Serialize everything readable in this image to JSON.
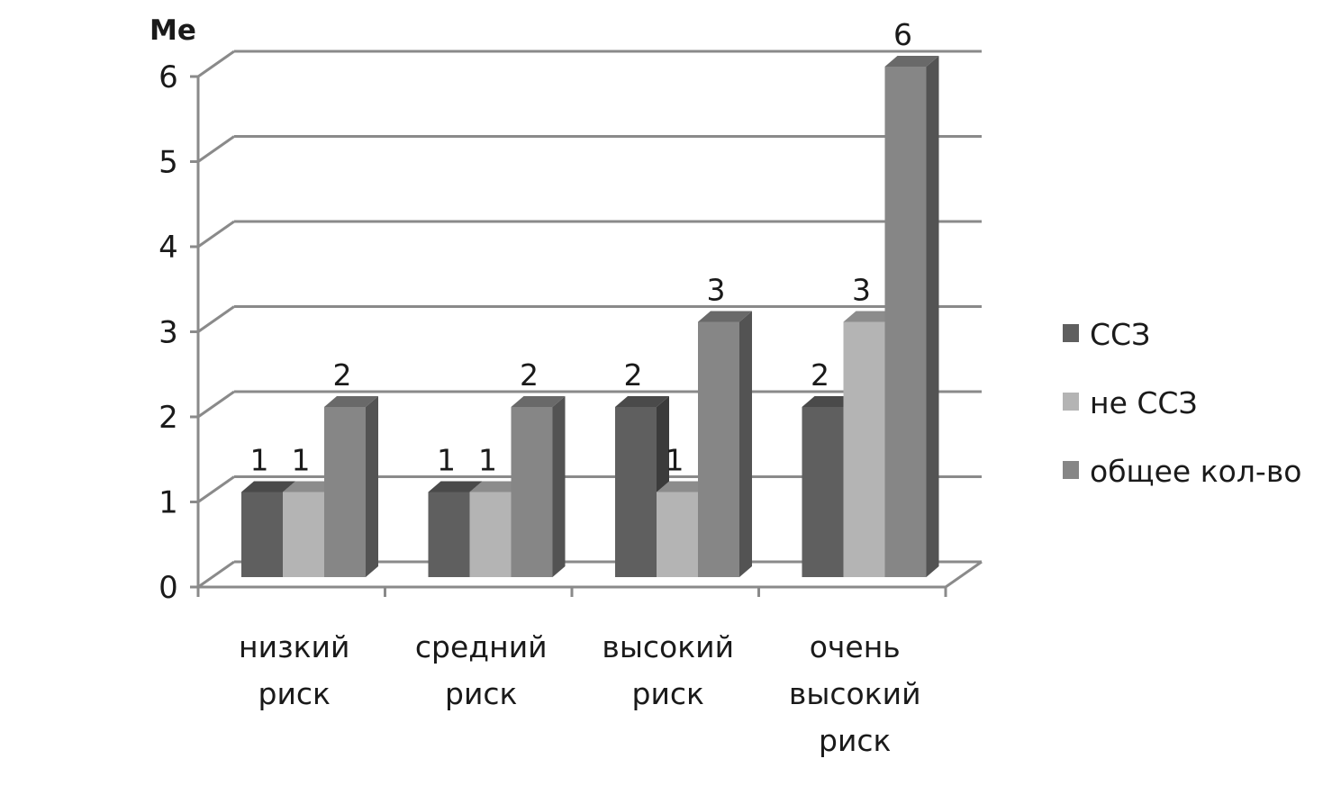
{
  "chart_data": {
    "type": "bar",
    "ylabel": "Me",
    "ylim": [
      0,
      6
    ],
    "yticks": [
      "0",
      "1",
      "2",
      "3",
      "4",
      "5",
      "6"
    ],
    "categories": [
      [
        "низкий",
        "риск"
      ],
      [
        "средний",
        "риск"
      ],
      [
        "высокий",
        "риск"
      ],
      [
        "очень",
        "высокий",
        "риск"
      ]
    ],
    "series": [
      {
        "name": "ССЗ",
        "color": "#5f5f5f",
        "values": [
          1,
          1,
          2,
          2
        ],
        "labels": [
          "1",
          "1",
          "2",
          "2"
        ]
      },
      {
        "name": "не ССЗ",
        "color": "#b4b4b4",
        "values": [
          1,
          1,
          1,
          3
        ],
        "labels": [
          "1",
          "1",
          "1",
          "3"
        ]
      },
      {
        "name": "общее кол-во",
        "color": "#868686",
        "values": [
          2,
          2,
          3,
          6
        ],
        "labels": [
          "2",
          "2",
          "3",
          "6"
        ]
      }
    ],
    "grid": true,
    "legend_position": "right",
    "three_d": true
  }
}
